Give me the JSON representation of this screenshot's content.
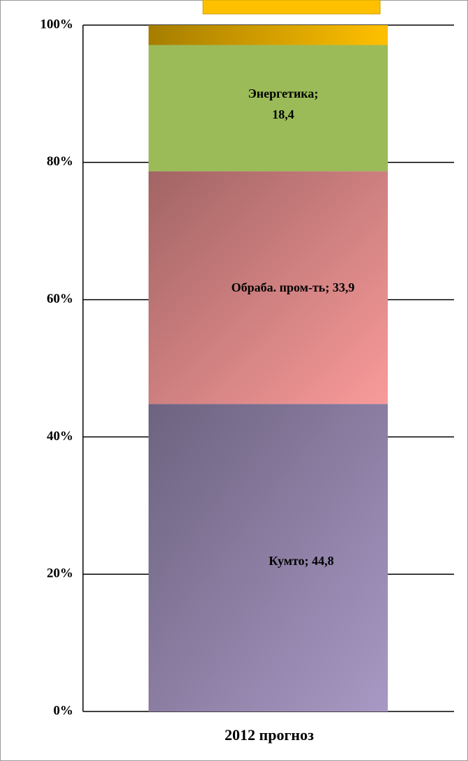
{
  "chart_data": {
    "type": "stacked_bar_100",
    "categories": [
      "2012 прогноз"
    ],
    "series": [
      {
        "color": "#a898c4",
        "values": [
          44.8
        ],
        "value_labels": [
          "Кумто; 44,8"
        ]
      },
      {
        "color": "#f99a9a",
        "values": [
          33.9
        ],
        "value_labels": [
          "Обраба. пром-ть; 33,9"
        ]
      },
      {
        "color": "#9bbb59",
        "values": [
          18.4
        ],
        "value_labels": [
          "Энергетика;\n18,4"
        ]
      },
      {
        "color": "#ffc000",
        "values": [
          2.9
        ]
      }
    ],
    "ylim": [
      0,
      100
    ],
    "yticks": [
      {
        "value": 0,
        "label": "0%"
      },
      {
        "value": 20,
        "label": "20%"
      },
      {
        "value": 40,
        "label": "40%"
      },
      {
        "value": 60,
        "label": "60%"
      },
      {
        "value": 80,
        "label": "80%"
      },
      {
        "value": 100,
        "label": "100%"
      }
    ],
    "grid": true
  }
}
